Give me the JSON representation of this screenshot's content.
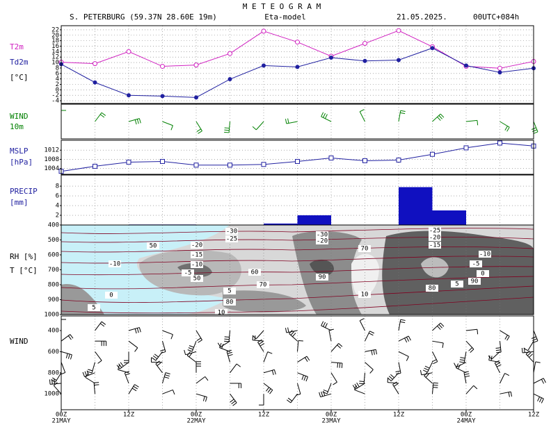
{
  "header": {
    "title": "M E T E O G R A M",
    "station": "S. PETERBURG (59.37N 28.60E  19m)",
    "model": "Eta-model",
    "date": "21.05.2025.",
    "run": "00UTC+084h"
  },
  "time_axis": {
    "ticks": [
      "00Z",
      "12Z",
      "00Z",
      "12Z",
      "00Z",
      "12Z",
      "00Z",
      "12Z"
    ],
    "dates": [
      "21MAY",
      "22MAY",
      "23MAY",
      "24MAY"
    ]
  },
  "chart_data": [
    {
      "type": "line",
      "unit": "[°C]",
      "ylim": [
        -5,
        23.5
      ],
      "yticks": [
        -4,
        -2,
        0,
        2,
        4,
        6,
        8,
        10,
        12,
        14,
        16,
        18,
        20,
        22
      ],
      "grid": true,
      "series": [
        {
          "name": "T2m",
          "color": "#d020c0",
          "marker": "open-circle",
          "values": [
            10.1,
            9.6,
            14,
            8.6,
            9.1,
            13.3,
            21.5,
            17.5,
            12.3,
            17,
            21.7,
            15.8,
            8.6,
            7.9,
            10.4
          ]
        },
        {
          "name": "Td2m",
          "color": "#2020a0",
          "marker": "dot",
          "values": [
            9.4,
            2.7,
            -2,
            -2.3,
            -2.8,
            3.9,
            8.9,
            8.4,
            11.8,
            10.6,
            10.9,
            15.3,
            8.9,
            6.4,
            7.9
          ]
        }
      ]
    },
    {
      "type": "barbs",
      "labels": [
        "WIND",
        "10m"
      ],
      "color": "#008000"
    },
    {
      "type": "line",
      "unit": "[hPa]",
      "ylim": [
        1001.5,
        1016.3
      ],
      "yticks": [
        1004,
        1008,
        1012
      ],
      "grid": true,
      "series": [
        {
          "name": "MSLP",
          "color": "#2020a0",
          "marker": "open-square",
          "values": [
            1002.8,
            1005,
            1006.8,
            1007.1,
            1005.5,
            1005.5,
            1005.8,
            1007.1,
            1008.6,
            1007.4,
            1007.7,
            1010.2,
            1013,
            1015.1,
            1013.8
          ]
        }
      ]
    },
    {
      "type": "bar",
      "name": "PRECIP",
      "unit": "[mm]",
      "color": "#1010c0",
      "ylim": [
        0,
        10.3
      ],
      "yticks": [
        2,
        4,
        6,
        8
      ],
      "grid": true,
      "values": [
        0,
        0,
        0.1,
        0.1,
        0,
        0,
        0.3,
        2,
        0,
        0,
        7.8,
        3,
        0,
        0
      ]
    },
    {
      "type": "cross-section",
      "labels": [
        "RH [%]",
        "T [°C]"
      ],
      "ylim": [
        400,
        1000
      ],
      "yticks": [
        400,
        500,
        600,
        700,
        800,
        900,
        1000
      ],
      "contour_labels": [
        "-30",
        "-25",
        "50",
        "-20",
        "-15",
        "-10",
        "-10",
        "-5",
        "50",
        "60",
        "70",
        "5",
        "80",
        "10",
        "0",
        "5",
        "-30",
        "-20",
        "70",
        "90",
        "10",
        "-25",
        "-20",
        "-15",
        "-10",
        "-5",
        "0",
        "90",
        "5",
        "80"
      ]
    },
    {
      "type": "barbs",
      "labels": [
        "WIND"
      ],
      "color": "#000000",
      "ylim": [
        262,
        1150
      ],
      "yticks": [
        400,
        600,
        800,
        1000
      ]
    }
  ]
}
